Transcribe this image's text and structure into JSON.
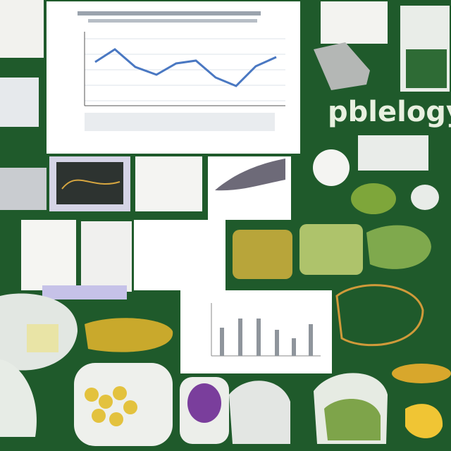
{
  "heading": "pblelogy"
}
